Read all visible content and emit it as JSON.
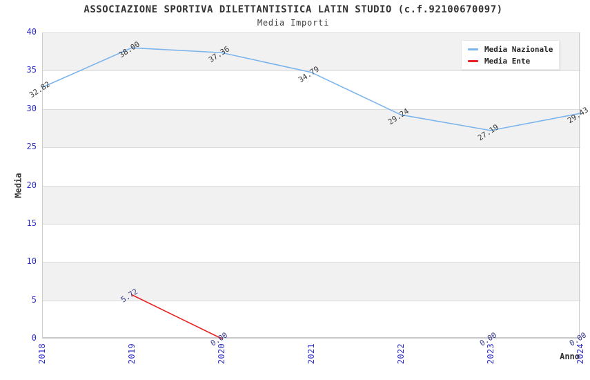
{
  "header": {
    "title": "ASSOCIAZIONE SPORTIVA DILETTANTISTICA LATIN STUDIO (c.f.92100670097)",
    "subtitle": "Media Importi"
  },
  "chart_data": {
    "type": "line",
    "title": "ASSOCIAZIONE SPORTIVA DILETTANTISTICA LATIN STUDIO (c.f.92100670097)",
    "subtitle": "Media Importi",
    "xlabel": "Anno",
    "ylabel": "Media",
    "categories": [
      "2018",
      "2019",
      "2020",
      "2021",
      "2022",
      "2023",
      "2024"
    ],
    "ylim": [
      0,
      40
    ],
    "ytick_step": 5,
    "yticks": [
      0,
      5,
      10,
      15,
      20,
      25,
      30,
      35,
      40
    ],
    "grid": true,
    "band_fill": "striped-horizontal",
    "legend_position": "top-right",
    "series": [
      {
        "name": "Media Nazionale",
        "color": "#7cb5ec",
        "label_color": "#3a3a3a",
        "values": [
          32.82,
          38.0,
          37.36,
          34.79,
          29.24,
          27.19,
          29.43
        ]
      },
      {
        "name": "Media Ente",
        "color": "#e62222",
        "label_color": "#39398e",
        "values": [
          null,
          5.72,
          0.0,
          null,
          null,
          0.0,
          0.0
        ]
      }
    ]
  },
  "colors": {
    "axis_tick_label": "#2f2fc7",
    "band_gray": "#f1f1f1",
    "gridline": "#dcdcdc",
    "plot_border": "#cccccc",
    "title_text": "#333333",
    "legend_background": "#ffffff"
  }
}
